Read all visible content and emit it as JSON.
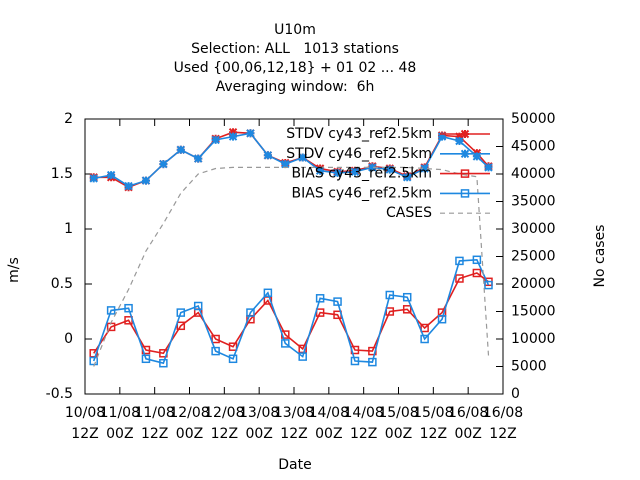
{
  "chart_data": {
    "type": "line",
    "title": [
      "U10m",
      "Selection: ALL   1013 stations",
      "Used {00,06,12,18} + 01 02 ... 48",
      "Averaging window:  6h"
    ],
    "xlabel": "Date",
    "ylabel": "m/s",
    "y2label": "No cases",
    "x": [
      3,
      9,
      15,
      21,
      27,
      33,
      39,
      45,
      51,
      57,
      63,
      69,
      75,
      81,
      87,
      93,
      99,
      105,
      111,
      117,
      123,
      129,
      135,
      139
    ],
    "xlim": [
      0,
      144
    ],
    "xticks": [
      {
        "value": 0,
        "label": "10/08 12Z"
      },
      {
        "value": 12,
        "label": "11/08 00Z"
      },
      {
        "value": 24,
        "label": "11/08 12Z"
      },
      {
        "value": 36,
        "label": "12/08 00Z"
      },
      {
        "value": 48,
        "label": "12/08 12Z"
      },
      {
        "value": 60,
        "label": "13/08 00Z"
      },
      {
        "value": 72,
        "label": "13/08 12Z"
      },
      {
        "value": 84,
        "label": "14/08 00Z"
      },
      {
        "value": 96,
        "label": "14/08 12Z"
      },
      {
        "value": 108,
        "label": "15/08 00Z"
      },
      {
        "value": 120,
        "label": "15/08 12Z"
      },
      {
        "value": 132,
        "label": "16/08 00Z"
      },
      {
        "value": 144,
        "label": "16/08 12Z"
      }
    ],
    "ylim": [
      -0.5,
      2
    ],
    "yticks": [
      -0.5,
      0,
      0.5,
      1,
      1.5,
      2
    ],
    "y2lim": [
      0,
      50000
    ],
    "y2ticks": [
      0,
      5000,
      10000,
      15000,
      20000,
      25000,
      30000,
      35000,
      40000,
      45000,
      50000
    ],
    "legend": "top-right",
    "series": [
      {
        "name": "STDV cy43_ref2.5km",
        "color": "#e02020",
        "marker": "star",
        "dash": false,
        "values": [
          1.47,
          1.47,
          1.38,
          1.44,
          1.59,
          1.72,
          1.64,
          1.82,
          1.88,
          1.87,
          1.67,
          1.6,
          1.65,
          1.55,
          1.52,
          1.53,
          1.57,
          1.55,
          1.48,
          1.56,
          1.85,
          1.84,
          1.69,
          1.57
        ]
      },
      {
        "name": "STDV cy46_ref2.5km",
        "color": "#1e88e0",
        "marker": "star",
        "dash": false,
        "values": [
          1.46,
          1.49,
          1.39,
          1.44,
          1.59,
          1.72,
          1.64,
          1.81,
          1.84,
          1.87,
          1.67,
          1.59,
          1.65,
          1.53,
          1.51,
          1.52,
          1.56,
          1.54,
          1.47,
          1.55,
          1.84,
          1.8,
          1.66,
          1.56
        ]
      },
      {
        "name": "BIAS cy43_ref2.5km",
        "color": "#e02020",
        "marker": "square",
        "dash": false,
        "values": [
          -0.13,
          0.11,
          0.17,
          -0.1,
          -0.13,
          0.12,
          0.24,
          0.0,
          -0.07,
          0.18,
          0.35,
          0.04,
          -0.09,
          0.24,
          0.22,
          -0.1,
          -0.11,
          0.25,
          0.27,
          0.1,
          0.24,
          0.55,
          0.6,
          0.52
        ]
      },
      {
        "name": "BIAS cy46_ref2.5km",
        "color": "#1e88e0",
        "marker": "square",
        "dash": false,
        "values": [
          -0.2,
          0.26,
          0.28,
          -0.18,
          -0.22,
          0.24,
          0.3,
          -0.11,
          -0.18,
          0.24,
          0.42,
          -0.04,
          -0.16,
          0.37,
          0.34,
          -0.2,
          -0.21,
          0.4,
          0.38,
          0.0,
          0.18,
          0.71,
          0.72,
          0.49
        ]
      },
      {
        "name": "CASES",
        "color": "#999999",
        "marker": "none",
        "dash": true,
        "axis": "y2",
        "values": [
          5000,
          13000,
          19000,
          26000,
          31000,
          36500,
          40000,
          41000,
          41200,
          41200,
          41200,
          41200,
          41200,
          41200,
          41200,
          41200,
          41200,
          41200,
          41200,
          41000,
          40800,
          40000,
          39500,
          7000
        ]
      }
    ]
  }
}
